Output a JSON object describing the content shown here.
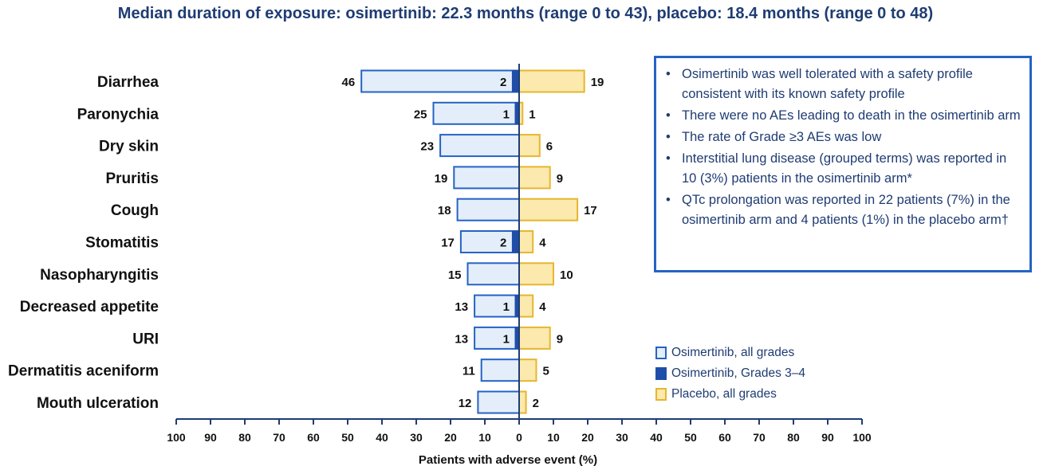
{
  "title": "Median duration of exposure: osimertinib: 22.3 months (range 0 to 43), placebo: 18.4 months (range 0 to 48)",
  "chart_data": {
    "type": "bar",
    "orientation": "horizontal-butterfly",
    "categories": [
      "Diarrhea",
      "Paronychia",
      "Dry skin",
      "Pruritis",
      "Cough",
      "Stomatitis",
      "Nasopharyngitis",
      "Decreased appetite",
      "URI",
      "Dermatitis aceniform",
      "Mouth ulceration"
    ],
    "series": [
      {
        "name": "Osimertinib, all grades",
        "side": "left",
        "values": [
          46,
          25,
          23,
          19,
          18,
          17,
          15,
          13,
          13,
          11,
          12
        ],
        "color": "#e4eefa",
        "border": "#2563c4"
      },
      {
        "name": "Osimertinib, Grades 3–4",
        "side": "left",
        "values": [
          2,
          1,
          null,
          null,
          null,
          2,
          null,
          1,
          1,
          null,
          null
        ],
        "color": "#1f4ea8",
        "border": "#1f4ea8"
      },
      {
        "name": "Placebo, all grades",
        "side": "right",
        "values": [
          19,
          1,
          6,
          9,
          17,
          4,
          10,
          4,
          9,
          5,
          2
        ],
        "color": "#fbe9ad",
        "border": "#e6b62f"
      }
    ],
    "xlabel": "Patients with adverse event (%)",
    "xticks": [
      100,
      90,
      80,
      70,
      60,
      50,
      40,
      30,
      20,
      10,
      0,
      10,
      20,
      30,
      40,
      50,
      60,
      70,
      80,
      90,
      100
    ],
    "xlim": [
      -100,
      100
    ],
    "axis_color": "#1f3c73"
  },
  "info": {
    "bullets": [
      "Osimertinib was well tolerated with a safety profile consistent with its known safety profile",
      "There were no AEs leading to death in the osimertinib arm",
      "The rate of Grade ≥3 AEs was low",
      "Interstitial lung disease (grouped terms) was reported in 10 (3%) patients in the osimertinib arm*",
      "QTc prolongation was reported in 22 patients (7%) in the osimertinib arm and 4 patients (1%) in the placebo arm†"
    ]
  },
  "legend": {
    "items": [
      {
        "label": "Osimertinib, all grades",
        "fill": "#e4eefa",
        "border": "#2563c4"
      },
      {
        "label": "Osimertinib, Grades 3–4",
        "fill": "#1f4ea8",
        "border": "#1f4ea8"
      },
      {
        "label": "Placebo, all grades",
        "fill": "#fbe9ad",
        "border": "#e6b62f"
      }
    ]
  }
}
